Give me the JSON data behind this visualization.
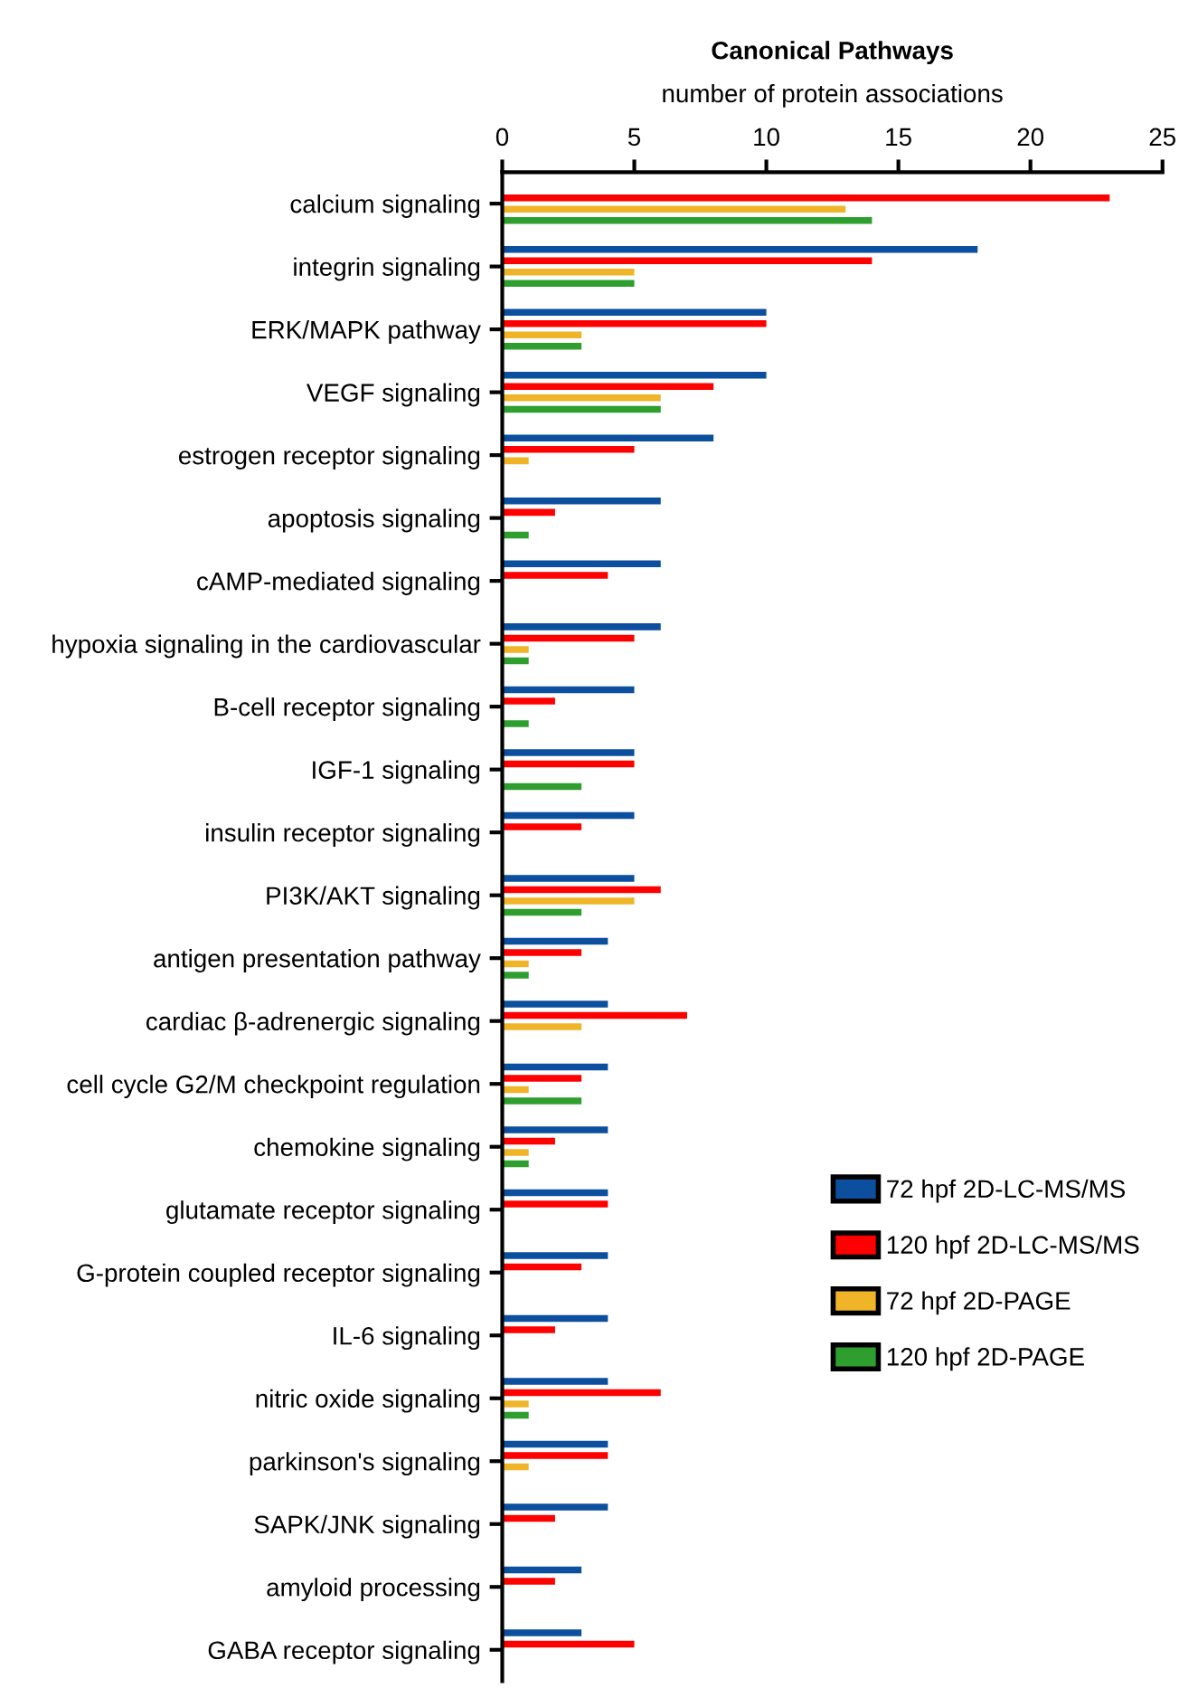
{
  "chart_data": {
    "type": "bar",
    "orientation": "horizontal",
    "title": "Canonical Pathways",
    "xlabel": "number of protein associations",
    "categories": [
      "calcium signaling",
      "integrin signaling",
      "ERK/MAPK pathway",
      "VEGF signaling",
      "estrogen receptor signaling",
      "apoptosis signaling",
      "cAMP-mediated signaling",
      "hypoxia signaling in the cardiovascular",
      "B-cell receptor signaling",
      "IGF-1 signaling",
      "insulin receptor signaling",
      "PI3K/AKT signaling",
      "antigen presentation pathway",
      "cardiac β-adrenergic signaling",
      "cell cycle G2/M checkpoint regulation",
      "chemokine signaling",
      "glutamate receptor signaling",
      "G-protein coupled receptor signaling",
      "IL-6 signaling",
      "nitric oxide signaling",
      "parkinson's signaling",
      "SAPK/JNK signaling",
      "amyloid processing",
      "GABA receptor signaling"
    ],
    "series": [
      {
        "name": "72 hpf 2D-LC-MS/MS",
        "color": "#0b4f9e",
        "values": [
          0,
          18,
          10,
          10,
          8,
          6,
          6,
          6,
          5,
          5,
          5,
          5,
          4,
          4,
          4,
          4,
          4,
          4,
          4,
          4,
          4,
          4,
          3,
          3
        ]
      },
      {
        "name": "120 hpf 2D-LC-MS/MS",
        "color": "#ff0000",
        "values": [
          23,
          14,
          10,
          8,
          5,
          2,
          4,
          5,
          2,
          5,
          3,
          6,
          3,
          7,
          3,
          2,
          4,
          3,
          2,
          6,
          4,
          2,
          2,
          5
        ]
      },
      {
        "name": "72 hpf 2D-PAGE",
        "color": "#f0b429",
        "values": [
          13,
          5,
          3,
          6,
          1,
          0,
          0,
          1,
          0,
          0,
          0,
          5,
          1,
          3,
          1,
          1,
          0,
          0,
          0,
          1,
          1,
          0,
          0,
          0
        ]
      },
      {
        "name": "120 hpf 2D-PAGE",
        "color": "#2e9e2e",
        "values": [
          14,
          5,
          3,
          6,
          0,
          1,
          0,
          1,
          1,
          3,
          0,
          3,
          1,
          0,
          3,
          1,
          0,
          0,
          0,
          1,
          0,
          0,
          0,
          0
        ]
      }
    ],
    "xlim": [
      0,
      25
    ],
    "xticks": [
      0,
      5,
      10,
      15,
      20,
      25
    ],
    "grid": false,
    "legend": "lower right"
  }
}
